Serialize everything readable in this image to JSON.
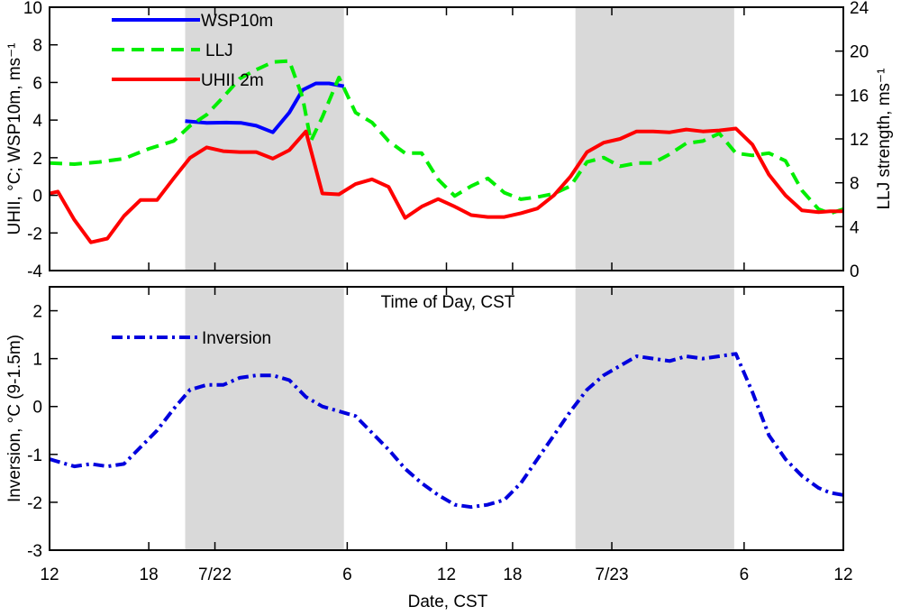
{
  "chart_data": [
    {
      "type": "line",
      "ylabel": "UHII, °C; WSP10m, ms⁻¹",
      "y2label": "LLJ strength, ms⁻¹",
      "xlabel": "Time of Day, CST",
      "xlim": [
        0,
        48
      ],
      "ylim": [
        -4,
        10
      ],
      "y2lim": [
        0,
        24
      ],
      "xticks": [
        0,
        6,
        10,
        18,
        24,
        28,
        34,
        42,
        48
      ],
      "xticklabels": [
        "12",
        "18",
        "7/22",
        "6",
        "12",
        "18",
        "7/23",
        "6",
        "12"
      ],
      "yticks": [
        -4,
        -2,
        0,
        2,
        4,
        6,
        8,
        10
      ],
      "y2ticks": [
        0,
        4,
        8,
        12,
        16,
        20,
        24
      ],
      "night_shading": [
        [
          8.2,
          17.8
        ],
        [
          31.8,
          41.4
        ]
      ],
      "legend_position": "top-left",
      "series": [
        {
          "name": "WSP10m",
          "axis": "left",
          "color": "#0000ff",
          "style": "solid",
          "x": [
            8.2,
            9.5,
            10.7,
            11.6,
            12.5,
            13.5,
            14.5,
            15.3,
            16.1,
            16.9,
            17.8
          ],
          "y": [
            3.95,
            3.85,
            3.87,
            3.85,
            3.7,
            3.35,
            4.4,
            5.6,
            5.95,
            5.95,
            5.8
          ]
        },
        {
          "name": "LLJ",
          "axis": "right",
          "color": "#00ee00",
          "style": "dashed",
          "x": [
            0,
            1.5,
            3,
            4.5,
            6,
            7.5,
            8.5,
            9.5,
            10.5,
            11.5,
            12.5,
            13.5,
            14.5,
            15.3,
            15.8,
            16.5,
            17.5,
            18.5,
            19.5,
            20.5,
            21.5,
            22.5,
            23.5,
            24.5,
            25.5,
            26.5,
            27.5,
            28.5,
            29.5,
            30.5,
            31.5,
            32.5,
            33.5,
            34.5,
            35.5,
            36.5,
            37.5,
            38.5,
            39.5,
            40.5,
            41.5,
            42.5,
            43.5,
            44.5,
            45.5,
            46.5,
            47.2,
            48
          ],
          "y": [
            9.8,
            9.7,
            9.9,
            10.2,
            11.1,
            11.8,
            13.2,
            14.2,
            15.8,
            17.5,
            18.3,
            19.0,
            19.1,
            15.8,
            11.8,
            14.0,
            17.6,
            14.4,
            13.5,
            11.8,
            10.7,
            10.7,
            8.3,
            6.8,
            7.7,
            8.4,
            7.1,
            6.5,
            6.7,
            7.0,
            7.7,
            9.9,
            10.3,
            9.5,
            9.8,
            9.8,
            10.6,
            11.6,
            11.8,
            12.5,
            10.7,
            10.5,
            10.7,
            10.0,
            7.3,
            5.6,
            5.2,
            5.6
          ]
        },
        {
          "name": "UHII 2m",
          "axis": "left",
          "color": "#ff0000",
          "style": "solid",
          "x": [
            0,
            0.5,
            1.5,
            2.5,
            3.5,
            4.5,
            5.5,
            6.5,
            7.5,
            8.5,
            9.5,
            10.5,
            11.5,
            12.5,
            13.5,
            14.5,
            15.5,
            16.5,
            17.5,
            18.5,
            19.5,
            20.5,
            21.5,
            22.5,
            23.5,
            24.5,
            25.5,
            26.5,
            27.5,
            28.5,
            29.5,
            30.5,
            31.5,
            32.5,
            33.5,
            34.5,
            35.5,
            36.5,
            37.5,
            38.5,
            39.5,
            40.5,
            41.5,
            42.5,
            43.5,
            44.5,
            45.5,
            46.5,
            47.2,
            48
          ],
          "y": [
            0.1,
            0.2,
            -1.3,
            -2.5,
            -2.3,
            -1.1,
            -0.25,
            -0.25,
            0.9,
            2.0,
            2.55,
            2.35,
            2.3,
            2.3,
            1.95,
            2.4,
            3.4,
            0.1,
            0.05,
            0.6,
            0.85,
            0.45,
            -1.2,
            -0.6,
            -0.2,
            -0.6,
            -1.05,
            -1.15,
            -1.15,
            -0.95,
            -0.7,
            0.0,
            1.0,
            2.3,
            2.8,
            3.0,
            3.4,
            3.4,
            3.35,
            3.5,
            3.4,
            3.45,
            3.55,
            2.7,
            1.1,
            0.0,
            -0.8,
            -0.9,
            -0.85,
            -0.85
          ]
        }
      ]
    },
    {
      "type": "line",
      "ylabel": "Inversion, °C (9-1.5m)",
      "xlabel": "Date, CST",
      "xlim": [
        0,
        48
      ],
      "ylim": [
        -3,
        2.5
      ],
      "xticks": [
        0,
        6,
        10,
        18,
        24,
        28,
        34,
        42,
        48
      ],
      "xticklabels": [
        "12",
        "18",
        "7/22",
        "6",
        "12",
        "18",
        "7/23",
        "6",
        "12"
      ],
      "yticks": [
        -3,
        -2,
        -1,
        0,
        1,
        2
      ],
      "night_shading": [
        [
          8.2,
          17.8
        ],
        [
          31.8,
          41.4
        ]
      ],
      "legend_position": "top-left",
      "series": [
        {
          "name": "Inversion",
          "color": "#0000dd",
          "style": "dashdot",
          "x": [
            0,
            0.5,
            1.5,
            2.5,
            3.5,
            4.5,
            5.5,
            6.5,
            7.5,
            8.5,
            9.5,
            10.5,
            11.5,
            12.5,
            13.5,
            14.5,
            15.5,
            16.5,
            17.5,
            18.5,
            19.5,
            20.5,
            21.5,
            22.5,
            23.5,
            24.5,
            25.5,
            26.5,
            27.5,
            28.5,
            29.5,
            30.5,
            31.5,
            32.5,
            33.5,
            34.5,
            35.5,
            36.5,
            37.5,
            38.5,
            39.5,
            40.5,
            41.5,
            42.5,
            43.5,
            44.5,
            45.5,
            46.5,
            47.2,
            48
          ],
          "y": [
            -1.1,
            -1.15,
            -1.25,
            -1.2,
            -1.25,
            -1.2,
            -0.85,
            -0.5,
            -0.05,
            0.35,
            0.45,
            0.45,
            0.6,
            0.65,
            0.65,
            0.55,
            0.2,
            0.0,
            -0.1,
            -0.2,
            -0.55,
            -0.9,
            -1.3,
            -1.6,
            -1.85,
            -2.05,
            -2.1,
            -2.05,
            -1.95,
            -1.6,
            -1.1,
            -0.6,
            -0.1,
            0.35,
            0.65,
            0.85,
            1.05,
            1.0,
            0.95,
            1.05,
            1.0,
            1.05,
            1.1,
            0.3,
            -0.6,
            -1.1,
            -1.45,
            -1.7,
            -1.8,
            -1.85
          ]
        }
      ]
    }
  ]
}
